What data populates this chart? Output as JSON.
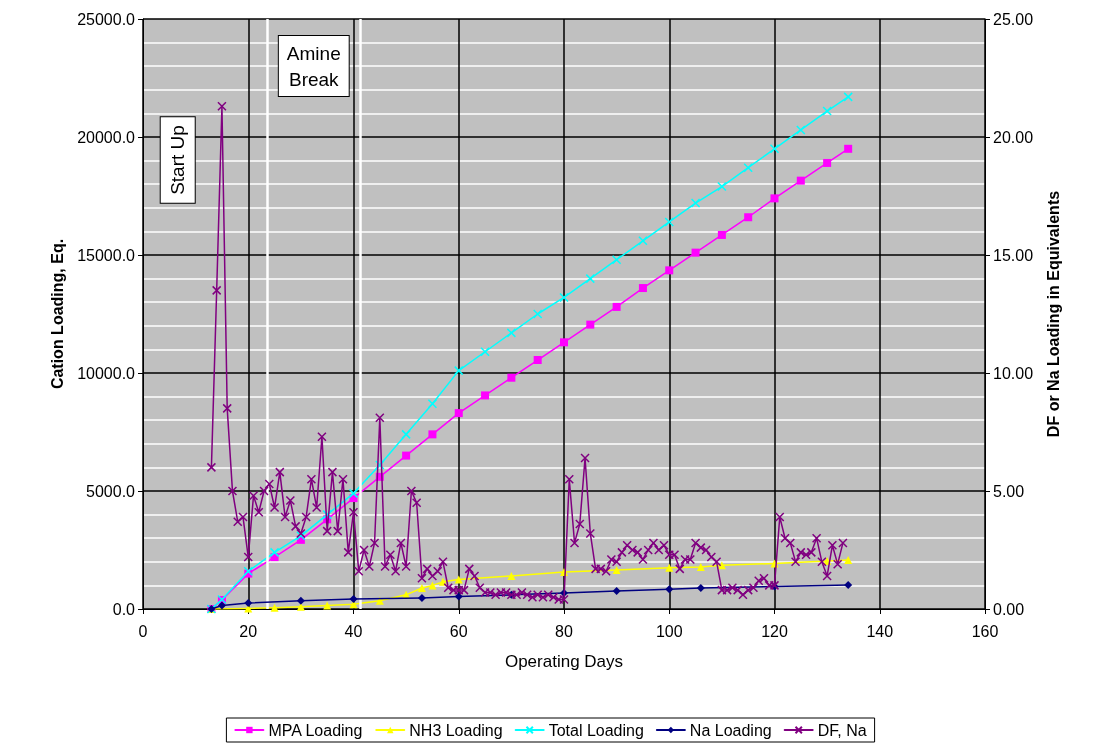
{
  "chart_data": {
    "type": "line",
    "xlabel": "Operating Days",
    "ylabel": "Cation Loading, Eq.",
    "y2label": "DF or Na Loading in Equivalents",
    "xlim": [
      0,
      160
    ],
    "xticks": [
      0,
      20,
      40,
      60,
      80,
      100,
      120,
      140,
      160
    ],
    "ylim": [
      0,
      25000
    ],
    "yticks": [
      {
        "value": 0,
        "label": "0.0"
      },
      {
        "value": 5000,
        "label": "5000.0"
      },
      {
        "value": 10000,
        "label": "10000.0"
      },
      {
        "value": 15000,
        "label": "15000.0"
      },
      {
        "value": 20000,
        "label": "20000.0"
      },
      {
        "value": 25000,
        "label": "25000.0"
      }
    ],
    "y2lim": [
      0,
      25
    ],
    "y2ticks": [
      {
        "value": 0,
        "label": "0.00"
      },
      {
        "value": 5,
        "label": "5.00"
      },
      {
        "value": 10,
        "label": "10.00"
      },
      {
        "value": 15,
        "label": "15.00"
      },
      {
        "value": 20,
        "label": "20.00"
      },
      {
        "value": 25,
        "label": "25.00"
      }
    ],
    "grid": true,
    "legend": "bottom",
    "line_style": "solid",
    "ref_lines": [
      {
        "axis": "x",
        "value": 23.7,
        "color": "#ffffff"
      },
      {
        "axis": "x",
        "value": 41.2,
        "color": "#ffffff"
      }
    ],
    "annotations": [
      "Start Up",
      "Amine Break"
    ],
    "series": [
      {
        "name": "MPA Loading",
        "color": "#ff00ff",
        "marker": "square",
        "x": [
          13,
          15,
          20,
          25,
          30,
          35,
          40,
          45,
          50,
          55,
          60,
          65,
          70,
          75,
          80,
          85,
          90,
          95,
          100,
          105,
          110,
          115,
          120,
          125,
          130,
          134
        ],
        "values": [
          0,
          380,
          1500,
          2200,
          2930,
          3800,
          4700,
          5600,
          6500,
          7400,
          8300,
          9050,
          9800,
          10550,
          11300,
          12050,
          12800,
          13600,
          14350,
          15100,
          15850,
          16600,
          17400,
          18150,
          18900,
          19500
        ]
      },
      {
        "name": "NH3 Loading",
        "color": "#ffff00",
        "marker": "triangle",
        "x": [
          13,
          20,
          25,
          30,
          35,
          40,
          45,
          50,
          53,
          55,
          57,
          60,
          70,
          80,
          90,
          100,
          106,
          110,
          120,
          130,
          134
        ],
        "values": [
          0,
          20,
          50,
          100,
          150,
          200,
          350,
          600,
          890,
          1000,
          1150,
          1250,
          1400,
          1570,
          1650,
          1750,
          1780,
          1850,
          1930,
          2030,
          2080
        ]
      },
      {
        "name": "Total Loading",
        "color": "#00ffff",
        "marker": "cross",
        "x": [
          13,
          15,
          20,
          25,
          30,
          35,
          40,
          45,
          50,
          55,
          60,
          65,
          70,
          75,
          80,
          85,
          90,
          95,
          100,
          105,
          110,
          115,
          120,
          125,
          130,
          134
        ],
        "values": [
          0,
          400,
          1600,
          2400,
          3100,
          4000,
          4900,
          6100,
          7400,
          8700,
          10100,
          10900,
          11700,
          12500,
          13200,
          14000,
          14800,
          15600,
          16400,
          17200,
          17900,
          18700,
          19500,
          20300,
          21100,
          21700
        ]
      },
      {
        "name": "Na Loading",
        "color": "#000080",
        "marker": "diamond",
        "axis": "y2",
        "x": [
          13,
          15,
          20,
          30,
          40,
          53,
          60,
          70,
          80,
          90,
          100,
          106,
          120,
          134
        ],
        "values": [
          0,
          0.15,
          0.25,
          0.35,
          0.42,
          0.47,
          0.53,
          0.6,
          0.68,
          0.76,
          0.84,
          0.89,
          0.95,
          1.02
        ]
      },
      {
        "name": "DF, Na",
        "color": "#800080",
        "marker": "cross",
        "axis": "y2",
        "x": [
          13,
          14,
          15,
          16,
          17,
          18,
          19,
          20,
          21,
          22,
          23,
          24,
          25,
          26,
          27,
          28,
          29,
          30,
          31,
          32,
          33,
          34,
          35,
          36,
          37,
          38,
          39,
          40,
          41,
          42,
          43,
          44,
          45,
          46,
          47,
          48,
          49,
          50,
          51,
          52,
          53,
          54,
          55,
          56,
          57,
          58,
          59,
          60,
          61,
          62,
          63,
          64,
          65,
          66,
          67,
          68,
          69,
          70,
          71,
          72,
          73,
          74,
          75,
          76,
          77,
          78,
          79,
          80,
          81,
          82,
          83,
          84,
          85,
          86,
          87,
          88,
          89,
          90,
          91,
          92,
          93,
          94,
          95,
          96,
          97,
          98,
          99,
          100,
          101,
          102,
          103,
          104,
          105,
          106,
          107,
          108,
          109,
          110,
          111,
          112,
          113,
          114,
          115,
          116,
          117,
          118,
          119,
          120,
          121,
          122,
          123,
          124,
          125,
          126,
          127,
          128,
          129,
          130,
          131,
          132,
          133
        ],
        "values": [
          6.0,
          13.5,
          21.3,
          8.5,
          5.0,
          3.7,
          3.9,
          2.2,
          4.8,
          4.1,
          5.0,
          5.3,
          4.3,
          5.8,
          3.9,
          4.6,
          3.5,
          3.2,
          3.9,
          5.5,
          4.3,
          7.3,
          3.3,
          5.8,
          3.3,
          5.5,
          2.4,
          4.1,
          1.6,
          2.5,
          1.8,
          2.8,
          8.1,
          1.8,
          2.3,
          1.6,
          2.8,
          1.8,
          5.0,
          4.5,
          1.3,
          1.7,
          1.4,
          1.6,
          2.0,
          0.9,
          0.8,
          0.8,
          0.8,
          1.7,
          1.4,
          0.9,
          0.7,
          0.7,
          0.6,
          0.7,
          0.7,
          0.6,
          0.6,
          0.7,
          0.6,
          0.5,
          0.6,
          0.5,
          0.6,
          0.5,
          0.4,
          0.4,
          5.5,
          2.8,
          3.6,
          6.4,
          3.2,
          1.7,
          1.7,
          1.6,
          2.1,
          2.0,
          2.4,
          2.7,
          2.5,
          2.4,
          2.1,
          2.5,
          2.8,
          2.5,
          2.7,
          2.3,
          2.3,
          1.7,
          2.1,
          2.1,
          2.8,
          2.6,
          2.5,
          2.2,
          2.0,
          0.8,
          0.8,
          0.9,
          0.8,
          0.6,
          0.8,
          0.9,
          1.2,
          1.3,
          1.0,
          1.0,
          3.9,
          3.0,
          2.8,
          2.0,
          2.4,
          2.3,
          2.4,
          3.0,
          2.0,
          1.4,
          2.7,
          1.9,
          2.8
        ]
      }
    ]
  }
}
